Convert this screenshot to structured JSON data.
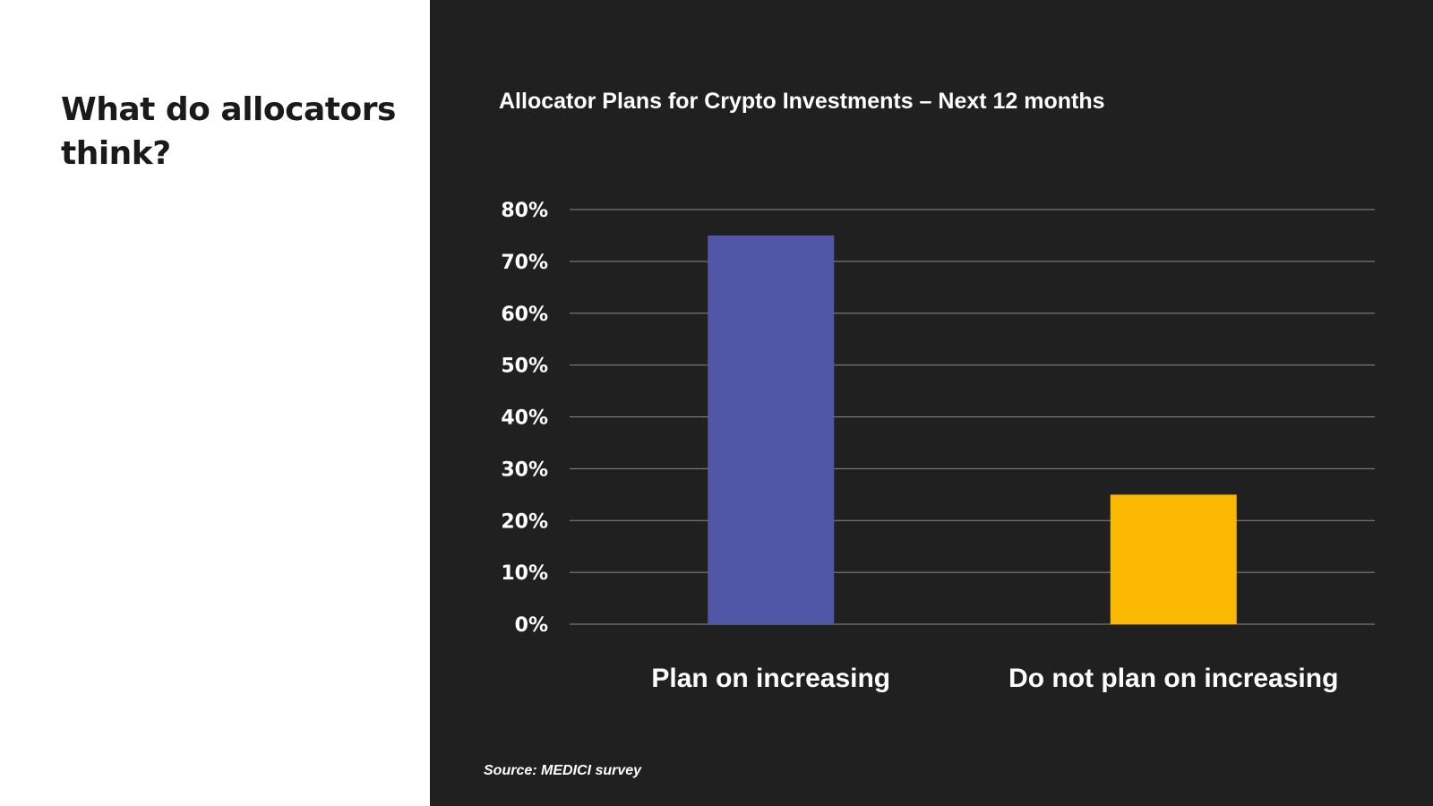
{
  "slide": {
    "heading": "What do allocators think?",
    "source": "Source: MEDICI survey"
  },
  "chart_data": {
    "type": "bar",
    "title": "Allocator Plans for Crypto Investments – Next 12 months",
    "xlabel": "",
    "ylabel": "",
    "categories": [
      "Plan on increasing",
      "Do not plan on increasing"
    ],
    "values": [
      75,
      25
    ],
    "bar_colors": [
      "#5157a7",
      "#fbb800"
    ],
    "ylim": [
      0,
      80
    ],
    "yticks": [
      "0%",
      "10%",
      "20%",
      "30%",
      "40%",
      "50%",
      "60%",
      "70%",
      "80%"
    ],
    "grid": true,
    "legend": "none"
  },
  "colors": {
    "panel_background": "#202020",
    "left_background": "#ffffff",
    "heading_text": "#1a1a1a",
    "chart_text": "#ffffff",
    "gridline": "#8a8a8a"
  }
}
